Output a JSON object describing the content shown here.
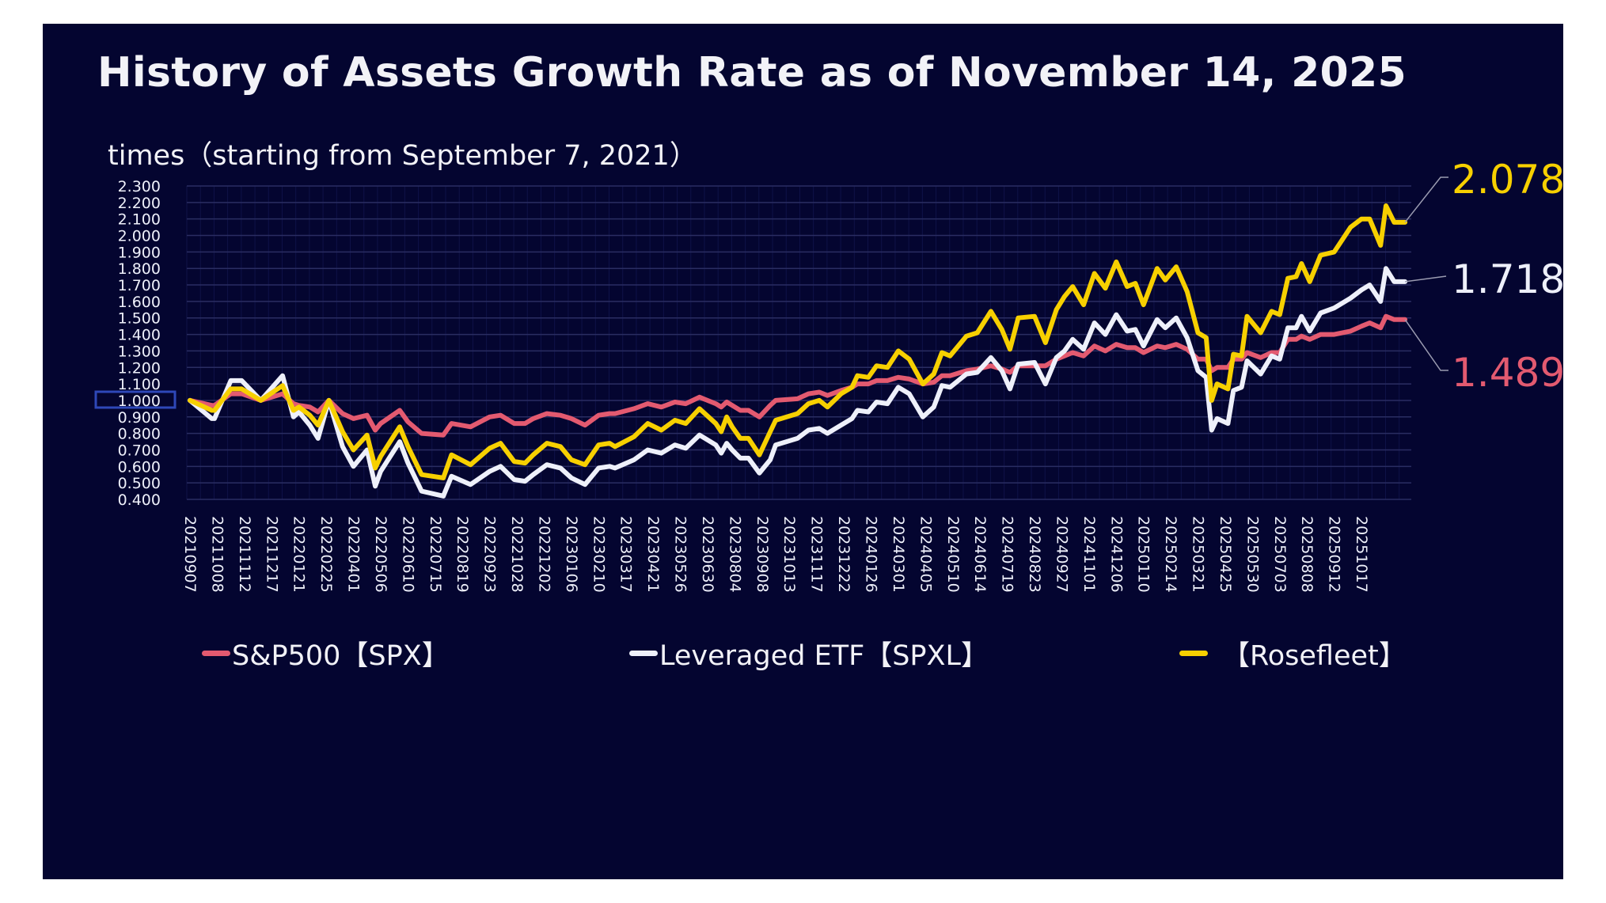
{
  "page": {
    "title": "History of Assets Growth Rate as of November 14, 2025",
    "subtitle": "times（starting from September 7, 2021）"
  },
  "chart_data": {
    "type": "line",
    "title": "History of Assets Growth Rate as of November 14, 2025",
    "ylabel": "times（starting from September 7, 2021）",
    "xlabel": "",
    "ylim": [
      0.4,
      2.3
    ],
    "yticks": [
      "2.300",
      "2.200",
      "2.100",
      "2.000",
      "1.900",
      "1.800",
      "1.700",
      "1.600",
      "1.500",
      "1.400",
      "1.300",
      "1.200",
      "1.100",
      "1.000",
      "0.900",
      "0.800",
      "0.700",
      "0.600",
      "0.500",
      "0.400"
    ],
    "highlighted_ytick": "1.000",
    "grid": true,
    "legend_position": "bottom",
    "categories": [
      "20210907",
      "20211008",
      "20211112",
      "20211217",
      "20220121",
      "20220225",
      "20220401",
      "20220506",
      "20220610",
      "20220715",
      "20220819",
      "20220923",
      "20221028",
      "20221202",
      "20230106",
      "20230210",
      "20230317",
      "20230421",
      "20230526",
      "20230630",
      "20230804",
      "20230908",
      "20231013",
      "20231117",
      "20231222",
      "20240126",
      "20240301",
      "20240405",
      "20240510",
      "20240614",
      "20240719",
      "20240823",
      "20240927",
      "20241101",
      "20241206",
      "20250110",
      "20250214",
      "20250321",
      "20250425",
      "20250530",
      "20250703",
      "20250808",
      "20250912",
      "20251017"
    ],
    "x_note": "x values are positions in units of category ticks (0 = 20210907, 43 = 20251017)",
    "x": [
      0,
      0.8,
      0.9,
      1.5,
      1.9,
      2.6,
      2.6,
      3.4,
      3.4,
      3.8,
      4.0,
      4.4,
      4.7,
      5.1,
      5.6,
      6.0,
      6.5,
      6.8,
      7.0,
      7.7,
      8.0,
      8.5,
      9.3,
      9.6,
      10.3,
      11.0,
      11.4,
      11.9,
      12.3,
      12.6,
      13.1,
      13.6,
      14.0,
      14.5,
      15.0,
      15.4,
      15.6,
      16.3,
      16.8,
      17.3,
      17.8,
      18.2,
      18.7,
      19.3,
      19.5,
      19.7,
      19.9,
      20.2,
      20.5,
      20.9,
      21.3,
      21.5,
      22.3,
      22.7,
      23.1,
      23.4,
      23.9,
      24.3,
      24.5,
      24.9,
      25.2,
      25.6,
      26.0,
      26.4,
      26.9,
      27.3,
      27.6,
      27.9,
      28.5,
      28.9,
      29.4,
      29.8,
      30.1,
      30.4,
      31.0,
      31.4,
      31.8,
      32.1,
      32.4,
      32.8,
      33.2,
      33.6,
      34.0,
      34.4,
      34.7,
      35.0,
      35.5,
      35.8,
      36.2,
      36.6,
      37.0,
      37.3,
      37.5,
      37.7,
      38.1,
      38.3,
      38.6,
      38.8,
      39.3,
      39.7,
      40.0,
      40.3,
      40.6,
      40.8,
      41.1,
      41.5,
      42.0,
      42.6,
      43.0,
      43.3,
      43.7,
      43.9,
      44.2,
      44.6
    ],
    "series": [
      {
        "name": "S&P500【SPX】",
        "color": "#e35a70",
        "last_value": "1.489",
        "values": [
          1.0,
          0.97,
          0.97,
          1.04,
          1.04,
          1.0,
          1.0,
          1.04,
          1.04,
          0.98,
          0.97,
          0.96,
          0.93,
          1.0,
          0.92,
          0.89,
          0.91,
          0.82,
          0.86,
          0.94,
          0.87,
          0.8,
          0.79,
          0.86,
          0.84,
          0.9,
          0.91,
          0.86,
          0.86,
          0.89,
          0.92,
          0.91,
          0.89,
          0.85,
          0.91,
          0.92,
          0.92,
          0.95,
          0.98,
          0.96,
          0.99,
          0.98,
          1.02,
          0.98,
          0.96,
          0.99,
          0.97,
          0.94,
          0.94,
          0.9,
          0.97,
          1.0,
          1.01,
          1.04,
          1.05,
          1.03,
          1.06,
          1.08,
          1.1,
          1.1,
          1.12,
          1.12,
          1.14,
          1.13,
          1.1,
          1.11,
          1.15,
          1.15,
          1.18,
          1.19,
          1.21,
          1.19,
          1.17,
          1.21,
          1.21,
          1.21,
          1.25,
          1.27,
          1.29,
          1.27,
          1.33,
          1.3,
          1.34,
          1.32,
          1.32,
          1.29,
          1.33,
          1.32,
          1.34,
          1.31,
          1.25,
          1.25,
          1.18,
          1.2,
          1.2,
          1.25,
          1.25,
          1.29,
          1.26,
          1.29,
          1.29,
          1.37,
          1.37,
          1.39,
          1.37,
          1.4,
          1.4,
          1.42,
          1.45,
          1.47,
          1.44,
          1.51,
          1.49,
          1.49
        ]
      },
      {
        "name": "Leveraged ETF【SPXL】",
        "color": "#eef0fa",
        "last_value": "1.718",
        "values": [
          1.0,
          0.89,
          0.89,
          1.12,
          1.12,
          1.0,
          1.0,
          1.15,
          1.15,
          0.9,
          0.93,
          0.85,
          0.77,
          1.0,
          0.72,
          0.6,
          0.7,
          0.48,
          0.57,
          0.75,
          0.62,
          0.45,
          0.42,
          0.54,
          0.49,
          0.57,
          0.6,
          0.52,
          0.51,
          0.55,
          0.61,
          0.59,
          0.53,
          0.49,
          0.59,
          0.6,
          0.59,
          0.64,
          0.7,
          0.68,
          0.73,
          0.71,
          0.79,
          0.73,
          0.68,
          0.74,
          0.7,
          0.65,
          0.65,
          0.56,
          0.64,
          0.73,
          0.77,
          0.82,
          0.83,
          0.8,
          0.85,
          0.89,
          0.94,
          0.93,
          0.99,
          0.98,
          1.08,
          1.04,
          0.9,
          0.96,
          1.09,
          1.08,
          1.16,
          1.17,
          1.26,
          1.18,
          1.07,
          1.22,
          1.23,
          1.1,
          1.26,
          1.3,
          1.37,
          1.31,
          1.47,
          1.4,
          1.52,
          1.42,
          1.43,
          1.33,
          1.49,
          1.44,
          1.5,
          1.38,
          1.18,
          1.14,
          0.82,
          0.89,
          0.86,
          1.06,
          1.08,
          1.24,
          1.16,
          1.27,
          1.25,
          1.44,
          1.44,
          1.51,
          1.42,
          1.53,
          1.56,
          1.62,
          1.67,
          1.7,
          1.6,
          1.8,
          1.72,
          1.72
        ]
      },
      {
        "name": "【Rosefleet】",
        "color": "#f7d000",
        "last_value": "2.078",
        "values": [
          1.0,
          0.94,
          0.94,
          1.07,
          1.07,
          1.0,
          1.0,
          1.09,
          1.09,
          0.94,
          0.96,
          0.91,
          0.85,
          1.0,
          0.81,
          0.7,
          0.79,
          0.59,
          0.66,
          0.84,
          0.72,
          0.55,
          0.53,
          0.67,
          0.61,
          0.71,
          0.74,
          0.63,
          0.62,
          0.67,
          0.74,
          0.72,
          0.64,
          0.61,
          0.73,
          0.74,
          0.72,
          0.78,
          0.86,
          0.82,
          0.88,
          0.86,
          0.95,
          0.86,
          0.81,
          0.9,
          0.84,
          0.77,
          0.77,
          0.67,
          0.81,
          0.88,
          0.92,
          0.98,
          1.0,
          0.96,
          1.04,
          1.08,
          1.15,
          1.14,
          1.21,
          1.2,
          1.3,
          1.25,
          1.1,
          1.16,
          1.29,
          1.27,
          1.39,
          1.41,
          1.54,
          1.43,
          1.31,
          1.5,
          1.51,
          1.35,
          1.55,
          1.63,
          1.69,
          1.58,
          1.77,
          1.68,
          1.84,
          1.69,
          1.71,
          1.58,
          1.8,
          1.73,
          1.81,
          1.66,
          1.41,
          1.38,
          1.0,
          1.1,
          1.07,
          1.28,
          1.27,
          1.51,
          1.41,
          1.54,
          1.52,
          1.74,
          1.75,
          1.83,
          1.72,
          1.88,
          1.9,
          2.05,
          2.1,
          2.1,
          1.94,
          2.18,
          2.08,
          2.08
        ]
      }
    ]
  }
}
